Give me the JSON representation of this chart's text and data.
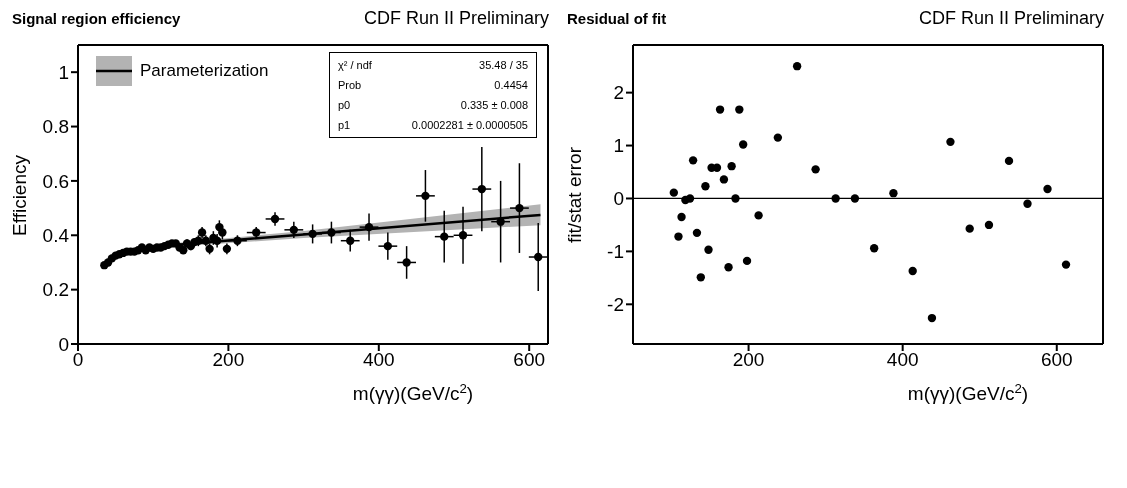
{
  "chart_data": [
    {
      "type": "scatter",
      "title": "Signal region efficiency",
      "subtitle": "CDF Run II Preliminary",
      "xlabel": "m(γγ)(GeV/c$^{2}$)",
      "ylabel": "Efficiency",
      "xlim": [
        0,
        625
      ],
      "xticks": [
        0,
        200,
        400,
        600
      ],
      "ylim": [
        0,
        1.1
      ],
      "yticks": [
        0,
        0.2,
        0.4,
        0.6,
        0.8,
        1
      ],
      "legend": "top left",
      "annotations": [
        "χ² / ndf",
        "35.48 / 35",
        "Prob",
        "0.4454",
        "p0",
        "0.335 ± 0.008",
        "p1",
        "0.0002281 ± 0.0000505"
      ],
      "series": [
        {
          "color": "#000000",
          "marker": "circle",
          "x": [
            35,
            40,
            45,
            50,
            55,
            60,
            65,
            70,
            75,
            80,
            85,
            90,
            95,
            100,
            105,
            110,
            115,
            120,
            125,
            130,
            135,
            140,
            145,
            150,
            155,
            160,
            165,
            170,
            175,
            180,
            185,
            188,
            192,
            198,
            212,
            237,
            262,
            287,
            312,
            337,
            362,
            387,
            412,
            437,
            462,
            487,
            512,
            537,
            562,
            587,
            612
          ],
          "values": [
            0.29,
            0.3,
            0.315,
            0.325,
            0.33,
            0.335,
            0.34,
            0.34,
            0.34,
            0.345,
            0.355,
            0.345,
            0.355,
            0.35,
            0.355,
            0.355,
            0.36,
            0.365,
            0.37,
            0.37,
            0.355,
            0.345,
            0.37,
            0.36,
            0.375,
            0.38,
            0.41,
            0.38,
            0.35,
            0.39,
            0.38,
            0.43,
            0.41,
            0.35,
            0.38,
            0.41,
            0.46,
            0.42,
            0.405,
            0.41,
            0.38,
            0.43,
            0.36,
            0.3,
            0.545,
            0.395,
            0.4,
            0.57,
            0.45,
            0.5,
            0.32
          ],
          "errors": [
            0.005,
            0.005,
            0.005,
            0.005,
            0.005,
            0.005,
            0.005,
            0.005,
            0.005,
            0.005,
            0.01,
            0.01,
            0.01,
            0.01,
            0.01,
            0.01,
            0.01,
            0.01,
            0.01,
            0.01,
            0.01,
            0.01,
            0.015,
            0.015,
            0.015,
            0.02,
            0.02,
            0.02,
            0.02,
            0.025,
            0.025,
            0.025,
            0.025,
            0.02,
            0.02,
            0.02,
            0.025,
            0.03,
            0.035,
            0.04,
            0.04,
            0.05,
            0.05,
            0.06,
            0.095,
            0.095,
            0.105,
            0.155,
            0.15,
            0.165,
            0.125
          ],
          "xerrors": [
            null,
            null,
            null,
            null,
            null,
            null,
            null,
            null,
            null,
            null,
            null,
            null,
            null,
            null,
            null,
            null,
            null,
            null,
            null,
            null,
            null,
            null,
            null,
            null,
            null,
            null,
            null,
            null,
            null,
            null,
            null,
            null,
            null,
            null,
            12.5,
            12.5,
            12.5,
            12.5,
            12.5,
            12.5,
            12.5,
            12.5,
            12.5,
            12.5,
            12.5,
            12.5,
            12.5,
            12.5,
            12.5,
            12.5,
            12.5
          ]
        },
        {
          "type": "line",
          "name": "Parameterization",
          "color": "#000000",
          "x": [
            100,
            300,
            615
          ],
          "values": [
            0.358,
            0.403,
            0.475
          ],
          "lower": [
            0.352,
            0.39,
            0.437
          ],
          "upper": [
            0.364,
            0.416,
            0.514
          ]
        }
      ]
    },
    {
      "type": "scatter",
      "title": "Residual of fit",
      "subtitle": "CDF Run II Preliminary",
      "xlabel": "m(γγ)(GeV/c$^{2}$)",
      "ylabel": "fit/stat error",
      "xlim": [
        50,
        660
      ],
      "xticks": [
        200,
        400,
        600
      ],
      "ylim": [
        -2.75,
        2.9
      ],
      "yticks": [
        -2,
        -1,
        0,
        1,
        2
      ],
      "marker": "circle",
      "color": "#000000",
      "ref_lines": [
        {
          "axis": "y",
          "value": 0,
          "color": "#000000"
        }
      ],
      "x": [
        103,
        109,
        113,
        118,
        124,
        128,
        133,
        138,
        144,
        148,
        152,
        159,
        163,
        168,
        174,
        178,
        183,
        188,
        193,
        198,
        213,
        238,
        263,
        287,
        313,
        338,
        363,
        388,
        413,
        438,
        462,
        487,
        512,
        538,
        562,
        588,
        612
      ],
      "values": [
        0.11,
        -0.72,
        -0.35,
        -0.03,
        0.0,
        0.72,
        -0.65,
        -1.49,
        0.23,
        -0.97,
        0.58,
        0.58,
        1.68,
        0.36,
        -1.3,
        0.61,
        0.0,
        1.68,
        1.02,
        -1.18,
        -0.32,
        1.15,
        2.5,
        0.55,
        0.0,
        0.0,
        -0.94,
        0.1,
        -1.37,
        -2.26,
        1.07,
        -0.57,
        -0.5,
        0.71,
        -0.1,
        0.18,
        -1.25
      ]
    }
  ]
}
